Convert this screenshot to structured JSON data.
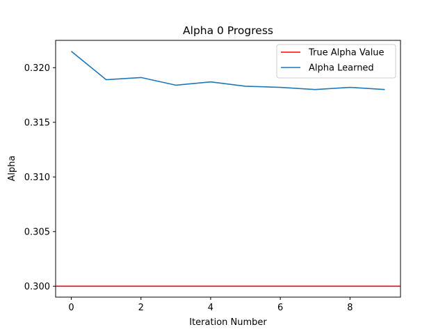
{
  "chart_data": {
    "type": "line",
    "title": "Alpha 0 Progress",
    "xlabel": "Iteration Number",
    "ylabel": "Alpha",
    "xlim": [
      -0.45,
      9.45
    ],
    "ylim": [
      0.299,
      0.3225
    ],
    "xticks": [
      0,
      2,
      4,
      6,
      8
    ],
    "yticks": [
      0.3,
      0.305,
      0.31,
      0.315,
      0.32
    ],
    "yticklabels": [
      "0.300",
      "0.305",
      "0.310",
      "0.315",
      "0.320"
    ],
    "grid": false,
    "legend_position": "upper right",
    "series": [
      {
        "name": "True Alpha Value",
        "kind": "hline",
        "y": 0.3,
        "color": "#ff0000"
      },
      {
        "name": "Alpha Learned",
        "kind": "line",
        "x": [
          0,
          1,
          2,
          3,
          4,
          5,
          6,
          7,
          8,
          9
        ],
        "y": [
          0.3215,
          0.3189,
          0.3191,
          0.3184,
          0.3187,
          0.3183,
          0.3182,
          0.318,
          0.3182,
          0.318
        ],
        "color": "#1f77b4"
      }
    ]
  }
}
